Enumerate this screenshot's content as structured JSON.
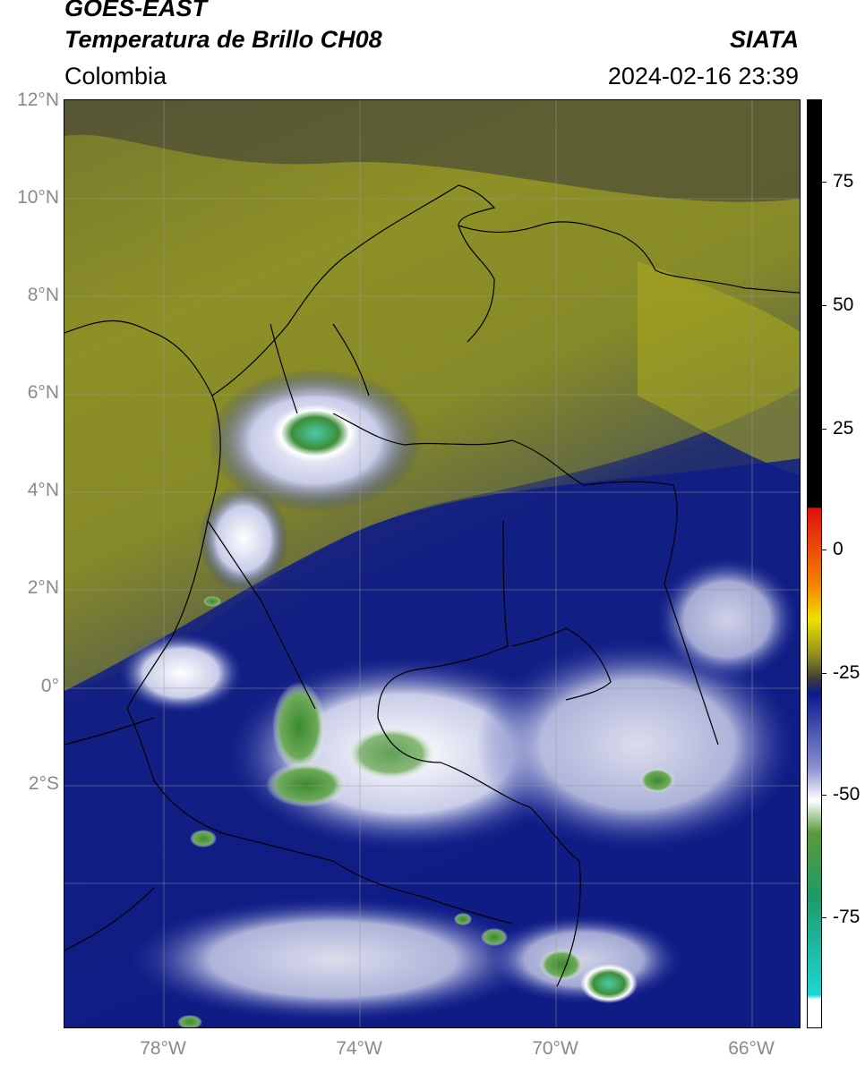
{
  "header": {
    "satellite": "GOES-EAST",
    "product": "Temperatura de Brillo CH08",
    "region": "Colombia",
    "source": "SIATA",
    "datetime": "2024-02-16 23:39"
  },
  "map": {
    "lat_labels": [
      "12°N",
      "10°N",
      "8°N",
      "6°N",
      "4°N",
      "2°N",
      "0°",
      "2°S"
    ],
    "lon_labels": [
      "78°W",
      "74°W",
      "70°W",
      "66°W"
    ]
  },
  "colorbar": {
    "ticks": [
      "75",
      "50",
      "25",
      "0",
      "-25",
      "-50",
      "-75"
    ],
    "colors": {
      "black": "#000000",
      "olive": "#8a8a1e",
      "navy": "#0a1a8c",
      "white": "#ffffff",
      "green": "#3a8a2a",
      "cyan": "#1ed6d6",
      "red": "#e01010",
      "yellow": "#f0e000"
    }
  }
}
